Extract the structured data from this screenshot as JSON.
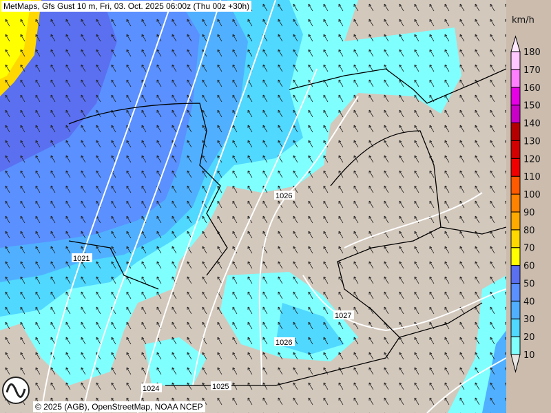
{
  "title": "MetMaps, Gfs Gust 10 m, Fri, 03. Oct. 2025 06:00z (Thu 00z +30h)",
  "credit": "© 2025 (AGB), OpenStreetMap, NOAA NCEP",
  "logo_text": "METMAPS",
  "legend": {
    "unit": "km/h",
    "levels": [
      10,
      20,
      30,
      40,
      50,
      60,
      70,
      80,
      90,
      100,
      110,
      120,
      130,
      140,
      150,
      160,
      170,
      180
    ],
    "level_labels": [
      "10",
      "20",
      "30",
      "40",
      "50",
      "60",
      "70",
      "80",
      "90",
      "100",
      "110",
      "120",
      "130",
      "140",
      "150",
      "160",
      "170",
      "180"
    ],
    "colors": [
      "#80ffff",
      "#50d8ff",
      "#50b0ff",
      "#5a90ff",
      "#5a70f0",
      "#ffff00",
      "#ffd800",
      "#ffaa00",
      "#ff8200",
      "#ff5a00",
      "#f00000",
      "#d20000",
      "#b40000",
      "#c800c8",
      "#e600e6",
      "#ff80ff",
      "#ffc8ff"
    ],
    "below_color": "#e8e4e2",
    "above_color": "#ffe8ff"
  },
  "pressure_labels": [
    {
      "text": "1026"
    },
    {
      "text": "1021"
    },
    {
      "text": "1027"
    },
    {
      "text": "1026"
    },
    {
      "text": "1024"
    },
    {
      "text": "1025"
    }
  ],
  "colors": {
    "land": "#d3c8bc",
    "isobar": "#ffffff",
    "border": "#000000"
  }
}
